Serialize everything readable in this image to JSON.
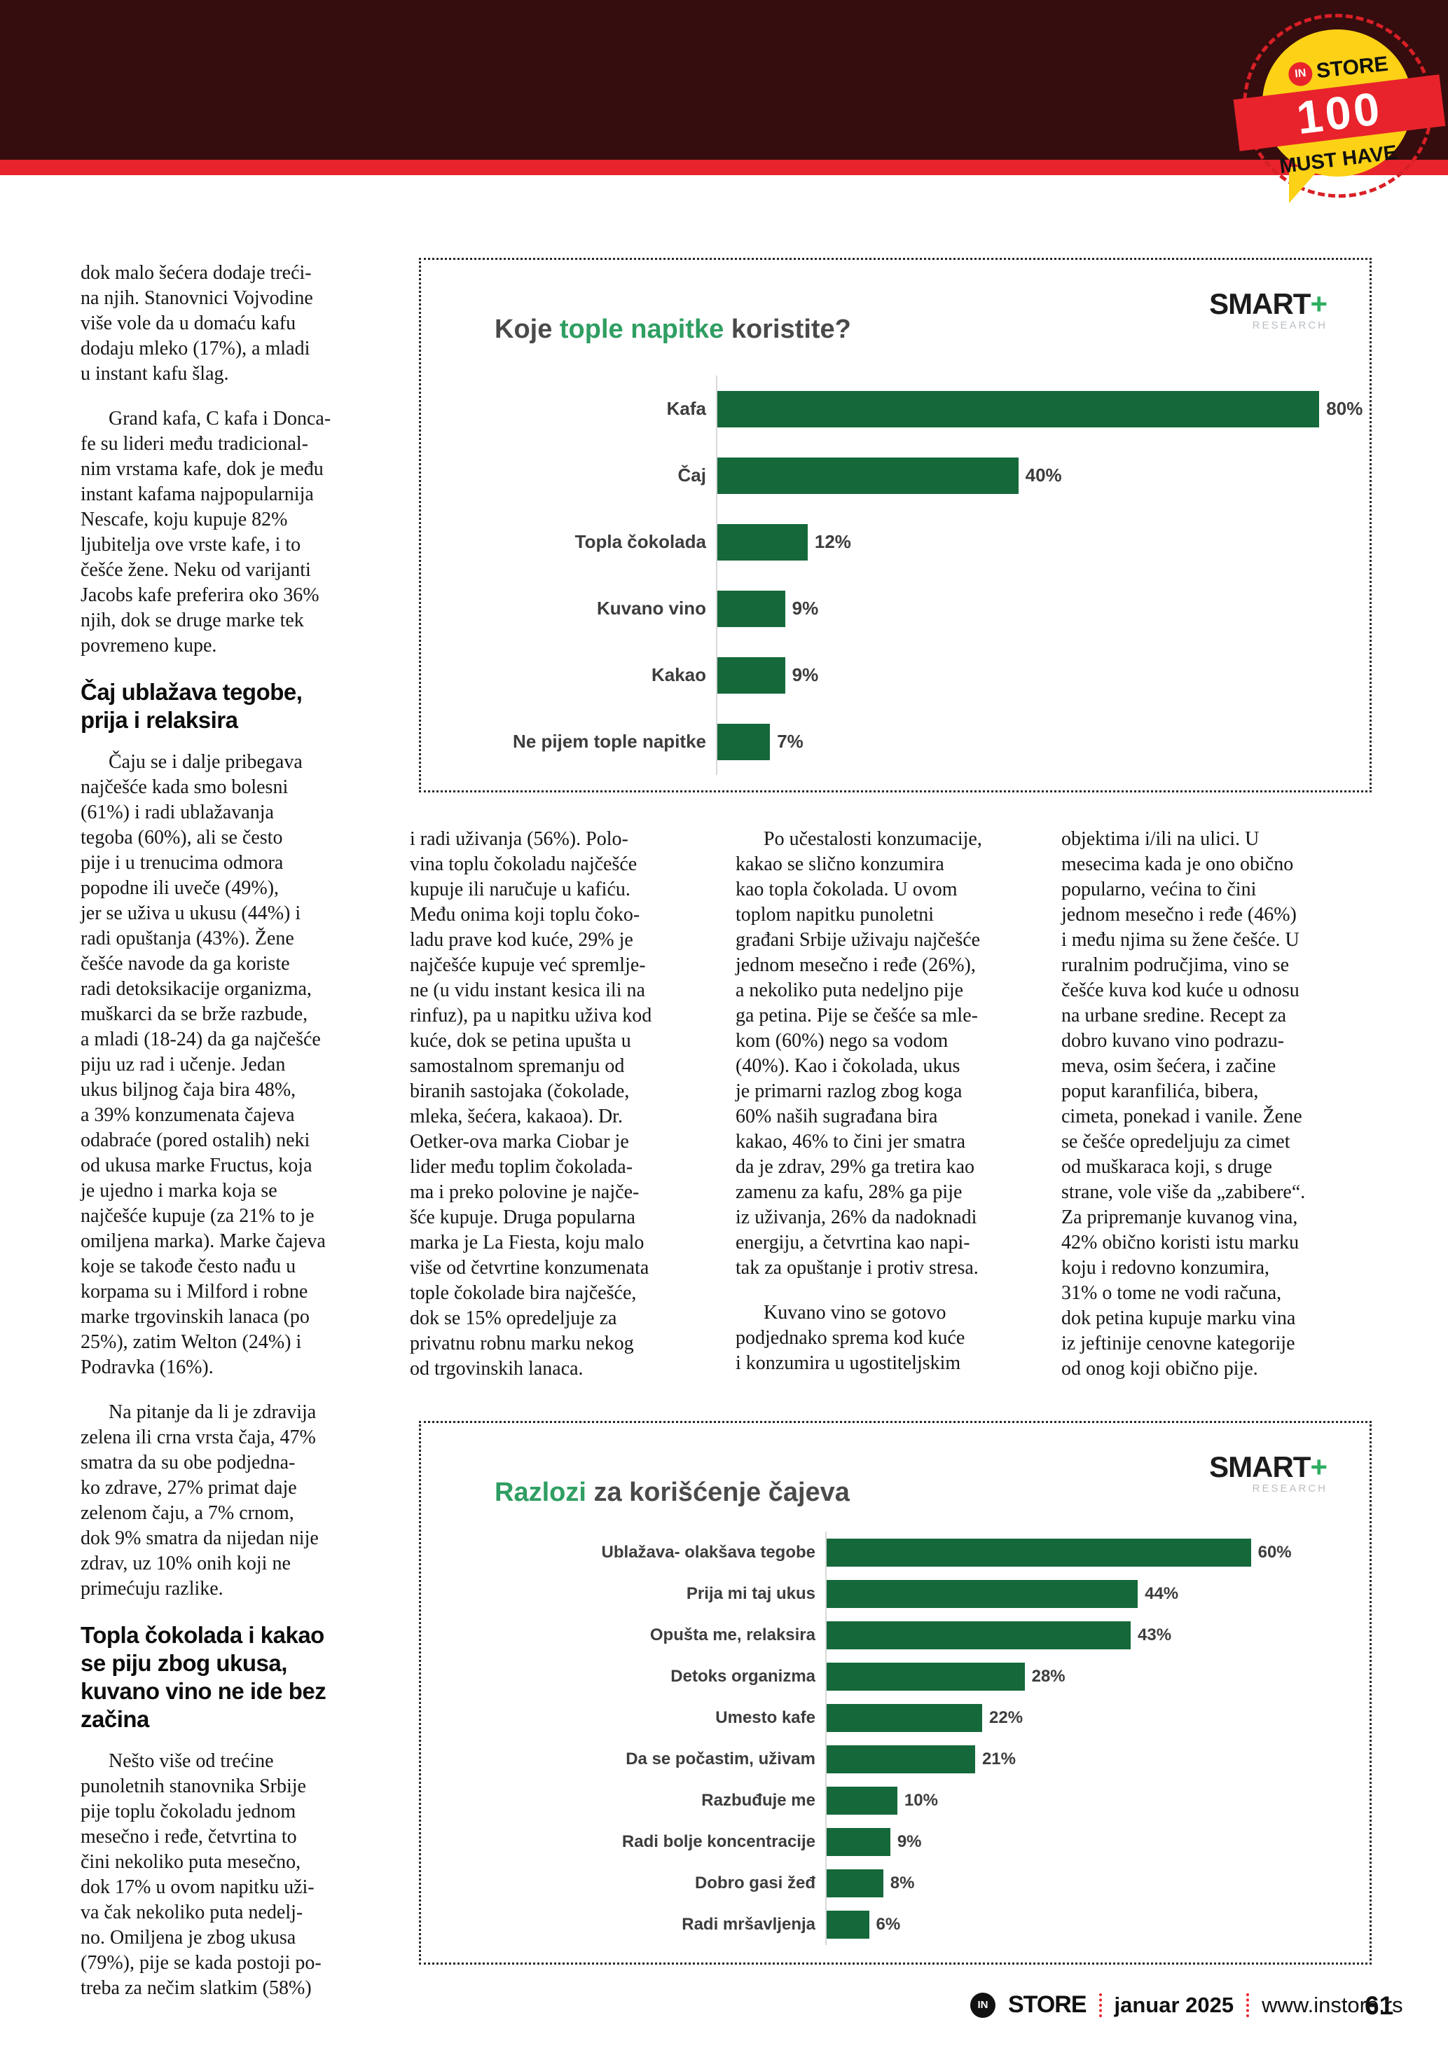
{
  "badge": {
    "brand_in": "IN",
    "brand_store": "STORE",
    "number": "100",
    "tagline": "MUST HAVE"
  },
  "logo": {
    "name": "SMART",
    "plus": "+",
    "sub": "RESEARCH"
  },
  "footer": {
    "logo_in": "IN",
    "logo_store": "STORE",
    "date": "januar 2025",
    "site": "www.instore.rs",
    "page_number": "61"
  },
  "article": {
    "col1": {
      "p1": "dok malo šećera dodaje treći-\nna njih. Stanovnici Vojvodine\nviše vole da u domaću kafu\ndodaju mleko (17%), a mladi\nu instant kafu šlag.",
      "p2": "Grand kafa, C kafa i Donca-\nfe su lideri među tradicional-\nnim vrstama kafe, dok je među\ninstant kafama najpopularnija\nNescafe, koju kupuje 82%\nljubitelja ove vrste kafe, i to\nčešće žene. Neku od varijanti\nJacobs kafe preferira oko 36%\nnjih, dok se druge marke tek\npovremeno kupe.",
      "h1": "Čaj ublažava tegobe,\nprija i relaksira",
      "p3": "Čaju se i dalje pribegava\nnajčešće kada smo bolesni\n(61%) i radi ublažavanja\ntegoba (60%), ali se često\npije i u trenucima odmora\npopodne ili uveče (49%),\njer se uživa u ukusu (44%) i\nradi opuštanja (43%). Žene\nčešće navode da ga koriste\nradi detoksikacije organizma,\nmuškarci da se brže razbude,\na mladi (18-24) da ga najčešće\npiju uz rad i učenje. Jedan\nukus biljnog čaja bira 48%,\na 39% konzumenata čajeva\nodabraće (pored ostalih) neki\nod ukusa marke Fructus, koja\nje ujedno i marka koja se\nnajčešće kupuje (za 21% to je\nomiljena marka). Marke čajeva\nkoje se takođe često nađu u\nkorpama su i Milford i robne\nmarke trgovinskih lanaca (po\n25%), zatim Welton (24%) i\nPodravka (16%).",
      "p4": "Na pitanje da li je zdravija\nzelena ili crna vrsta čaja, 47%\nsmatra da su obe podjedna-\nko zdrave, 27% primat daje\nzelenom čaju, a 7% crnom,\ndok 9% smatra da nijedan nije\nzdrav, uz 10% onih koji ne\nprimećuju razlike.",
      "h2": "Topla čokolada i kakao\nse piju zbog ukusa,\nkuvano vino ne ide bez\nzačina",
      "p5": "Nešto više od trećine\npunoletnih stanovnika Srbije\npije toplu čokoladu jednom\nmesečno i ređe, četvrtina to\nčini nekoliko puta mesečno,\ndok 17% u ovom napitku uži-\nva čak nekoliko puta nedelj-\nno. Omiljena je zbog ukusa\n(79%), pije se kada postoji po-\ntreba za nečim slatkim (58%)"
    },
    "col2": {
      "p1": "i radi uživanja (56%). Polo-\nvina toplu čokoladu najčešće\nkupuje ili naručuje u kafiću.\nMeđu onima koji toplu čoko-\nladu prave kod kuće, 29% je\nnajčešće kupuje već spremlje-\nne (u vidu instant kesica ili na\nrinfuz), pa u napitku uživa kod\nkuće, dok se petina upušta u\nsamostalnom spremanju od\nbiranih sastojaka (čokolade,\nmleka, šećera, kakaoa). Dr.\nOetker-ova marka Ciobar je\nlider među toplim čokolada-\nma i preko polovine je najče-\nšće kupuje. Druga popularna\nmarka je La Fiesta, koju malo\nviše od četvrtine konzumenata\ntople čokolade bira najčešće,\ndok se 15% opredeljuje za\nprivatnu robnu marku nekog\nod trgovinskih lanaca."
    },
    "col3": {
      "p1": "Po učestalosti konzumacije,\nkakao se slično konzumira\nkao topla čokolada. U ovom\ntoplom napitku punoletni\ngrađani Srbije uživaju najčešće\njednom mesečno i ređe (26%),\na nekoliko puta nedeljno pije\nga petina. Pije se češće sa mle-\nkom (60%) nego sa vodom\n(40%). Kao i čokolada, ukus\nje primarni razlog zbog koga\n60% naših sugrađana bira\nkakao, 46% to čini jer smatra\nda je zdrav, 29% ga tretira kao\nzamenu za kafu, 28% ga pije\niz uživanja, 26% da nadoknadi\nenergiju, a četvrtina kao napi-\ntak za opuštanje i protiv stresa.",
      "p2": "Kuvano vino se gotovo\npodjednako sprema kod kuće\ni konzumira u ugostiteljskim"
    },
    "col4": {
      "p1": "objektima i/ili na ulici. U\nmesecima kada je ono obično\npopularno, većina to čini\njednom mesečno i ređe (46%)\ni među njima su žene češće. U\nruralnim područjima, vino se\nčešće kuva kod kuće u odnosu\nna urbane sredine. Recept za\ndobro kuvano vino podrazu-\nmeva, osim šećera, i začine\npoput karanfilića, bibera,\ncimeta, ponekad i vanile. Žene\nse češće opredeljuju za cimet\nod muškaraca koji, s druge\nstrane, vole više da „zabibere“.\nZa pripremanje kuvanog vina,\n42% obično koristi istu marku\nkoju i redovno konzumira,\n31% o tome ne vodi računa,\ndok petina kupuje marku vina\niz jeftinije cenovne kategorije\nod onog koji obično pije."
    }
  },
  "chart_data": [
    {
      "type": "bar",
      "orientation": "horizontal",
      "title": "Koje tople napitke koristite?",
      "title_parts": [
        {
          "text": "Koje ",
          "highlight": false
        },
        {
          "text": "tople napitke",
          "highlight": true
        },
        {
          "text": " koristite?",
          "highlight": false
        }
      ],
      "source": "SMART+ RESEARCH",
      "categories": [
        "Kafa",
        "Čaj",
        "Topla čokolada",
        "Kuvano vino",
        "Kakao",
        "Ne pijem tople napitke"
      ],
      "values": [
        80,
        40,
        12,
        9,
        9,
        7
      ],
      "unit": "%",
      "xlim": [
        0,
        85
      ],
      "bar_color": "#156839",
      "grid": false,
      "value_labels": "end"
    },
    {
      "type": "bar",
      "orientation": "horizontal",
      "title": "Razlozi za korišćenje čajeva",
      "title_parts": [
        {
          "text": "Razlozi",
          "highlight": true
        },
        {
          "text": " za korišćenje čajeva",
          "highlight": false
        }
      ],
      "source": "SMART+ RESEARCH",
      "categories": [
        "Ublažava- olakšava tegobe",
        "Prija mi taj ukus",
        "Opušta me, relaksira",
        "Detoks organizma",
        "Umesto kafe",
        "Da se počastim, uživam",
        "Razbuđuje me",
        "Radi bolje koncentracije",
        "Dobro gasi žeđ",
        "Radi mršavljenja"
      ],
      "values": [
        60,
        44,
        43,
        28,
        22,
        21,
        10,
        9,
        8,
        6
      ],
      "unit": "%",
      "xlim": [
        0,
        75
      ],
      "bar_color": "#156839",
      "grid": false,
      "value_labels": "end"
    }
  ]
}
